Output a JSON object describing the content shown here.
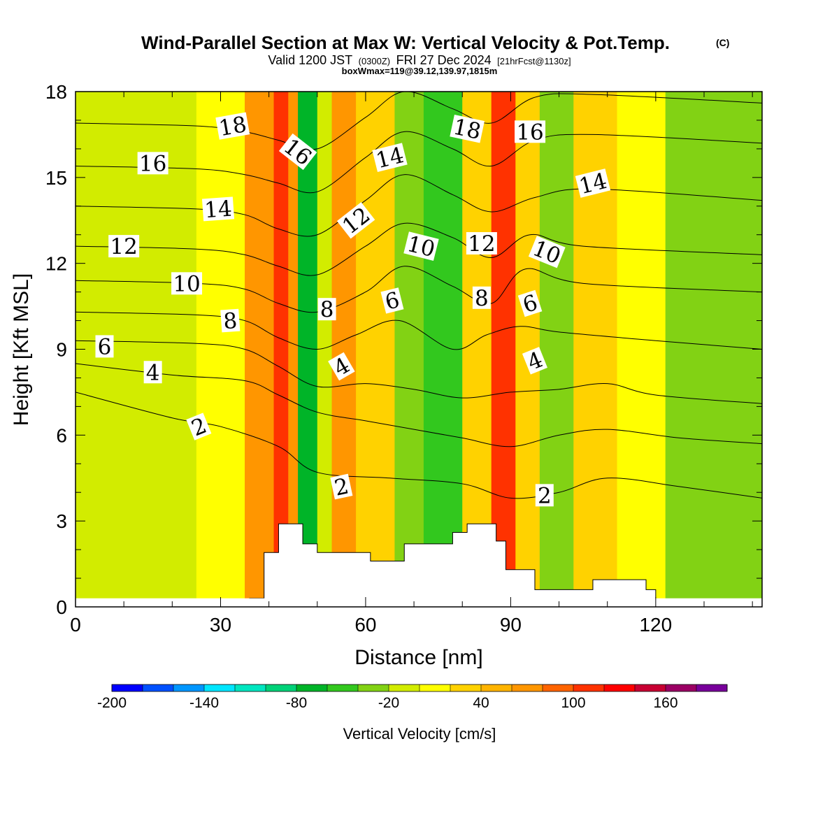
{
  "chart_data": {
    "type": "heatmap",
    "title": "Wind-Parallel Section at Max W: Vertical Velocity & Pot.Temp.",
    "title_mark": "(C)",
    "subtitle_parts": [
      "Valid 1200 JST",
      "(0300Z)",
      "FRI 27 Dec 2024",
      "[21hrFcst@1130z]"
    ],
    "subtitle2": "boxWmax=119@39.12,139.97,1815m",
    "xlabel": "Distance [nm]",
    "ylabel": "Height [Kft MSL]",
    "xlim": [
      0,
      142
    ],
    "ylim": [
      0,
      18
    ],
    "x_ticks": [
      0,
      30,
      60,
      90,
      120
    ],
    "x_tick_labels": [
      "0",
      "30",
      "60",
      "90",
      "120"
    ],
    "y_ticks": [
      0,
      3,
      6,
      9,
      12,
      15,
      18
    ],
    "y_tick_labels": [
      "0",
      "3",
      "6",
      "9",
      "12",
      "15",
      "18"
    ],
    "colorbar": {
      "label": "Vertical Velocity [cm/s]",
      "min": -200,
      "max": 200,
      "tick_values": [
        -200,
        -140,
        -80,
        -20,
        40,
        100,
        160
      ],
      "tick_labels": [
        "-200",
        "-140",
        "-80",
        "-20",
        "40",
        "100",
        "160"
      ],
      "colors": [
        "#0000ff",
        "#0050ff",
        "#0096ff",
        "#00e6ff",
        "#00e6c0",
        "#00d278",
        "#00b428",
        "#32c81e",
        "#82d214",
        "#d2ec00",
        "#ffff00",
        "#ffd200",
        "#ffb400",
        "#ff9600",
        "#ff6400",
        "#ff3200",
        "#ff0000",
        "#c80032",
        "#9b0064",
        "#78009b"
      ]
    },
    "velocity_bands": [
      {
        "x_min": 0,
        "x_max": 25,
        "w": -10
      },
      {
        "x_min": 25,
        "x_max": 35,
        "w": 5
      },
      {
        "x_min": 35,
        "x_max": 41,
        "w": 60
      },
      {
        "x_min": 41,
        "x_max": 44,
        "w": 110
      },
      {
        "x_min": 44,
        "x_max": 46,
        "w": 60
      },
      {
        "x_min": 46,
        "x_max": 50,
        "w": -70
      },
      {
        "x_min": 50,
        "x_max": 53,
        "w": -20
      },
      {
        "x_min": 53,
        "x_max": 58,
        "w": 60
      },
      {
        "x_min": 58,
        "x_max": 66,
        "w": 30
      },
      {
        "x_min": 66,
        "x_max": 72,
        "w": -30
      },
      {
        "x_min": 72,
        "x_max": 80,
        "w": -50
      },
      {
        "x_min": 80,
        "x_max": 86,
        "w": 20
      },
      {
        "x_min": 86,
        "x_max": 91,
        "w": 110
      },
      {
        "x_min": 91,
        "x_max": 96,
        "w": 30
      },
      {
        "x_min": 96,
        "x_max": 103,
        "w": -40
      },
      {
        "x_min": 103,
        "x_max": 112,
        "w": 30
      },
      {
        "x_min": 112,
        "x_max": 122,
        "w": 10
      },
      {
        "x_min": 122,
        "x_max": 142,
        "w": -30
      }
    ],
    "terrain": [
      [
        36,
        0.3
      ],
      [
        39,
        1.9
      ],
      [
        42,
        2.9
      ],
      [
        47,
        2.2
      ],
      [
        50,
        1.9
      ],
      [
        61,
        1.6
      ],
      [
        68,
        2.2
      ],
      [
        78,
        2.6
      ],
      [
        81,
        2.9
      ],
      [
        87,
        2.3
      ],
      [
        89,
        1.3
      ],
      [
        95,
        0.6
      ],
      [
        100,
        0.6
      ],
      [
        107,
        0.95
      ],
      [
        113,
        0.95
      ],
      [
        118,
        0.6
      ],
      [
        120,
        0.3
      ]
    ],
    "theta_contours": [
      {
        "label": "2",
        "points": [
          [
            0,
            7.5
          ],
          [
            20,
            6.6
          ],
          [
            30,
            6.3
          ],
          [
            42,
            5.6
          ],
          [
            50,
            4.7
          ],
          [
            65,
            4.5
          ],
          [
            80,
            4.3
          ],
          [
            90,
            3.8
          ],
          [
            100,
            4.0
          ],
          [
            110,
            4.5
          ],
          [
            125,
            4.2
          ],
          [
            142,
            3.8
          ]
        ]
      },
      {
        "label": "4",
        "points": [
          [
            0,
            8.5
          ],
          [
            20,
            8.1
          ],
          [
            35,
            7.9
          ],
          [
            42,
            7.4
          ],
          [
            50,
            6.8
          ],
          [
            60,
            6.5
          ],
          [
            70,
            6.2
          ],
          [
            80,
            5.9
          ],
          [
            90,
            5.6
          ],
          [
            100,
            6.0
          ],
          [
            110,
            6.2
          ],
          [
            125,
            5.9
          ],
          [
            142,
            5.7
          ]
        ]
      },
      {
        "label": "6",
        "points": [
          [
            0,
            9.3
          ],
          [
            25,
            9.2
          ],
          [
            35,
            9.0
          ],
          [
            42,
            8.4
          ],
          [
            50,
            7.7
          ],
          [
            60,
            7.8
          ],
          [
            70,
            7.6
          ],
          [
            80,
            7.3
          ],
          [
            90,
            7.5
          ],
          [
            100,
            7.6
          ],
          [
            110,
            7.8
          ],
          [
            120,
            7.4
          ],
          [
            142,
            7.1
          ]
        ]
      },
      {
        "label": "8",
        "points": [
          [
            0,
            10.3
          ],
          [
            25,
            10.2
          ],
          [
            35,
            10.0
          ],
          [
            42,
            9.4
          ],
          [
            50,
            9.0
          ],
          [
            58,
            9.5
          ],
          [
            67,
            10.0
          ],
          [
            78,
            9.0
          ],
          [
            85,
            9.5
          ],
          [
            92,
            9.8
          ],
          [
            100,
            9.6
          ],
          [
            120,
            9.3
          ],
          [
            142,
            9.0
          ]
        ]
      },
      {
        "label": "10",
        "points": [
          [
            0,
            11.4
          ],
          [
            25,
            11.3
          ],
          [
            35,
            11.1
          ],
          [
            42,
            10.6
          ],
          [
            50,
            10.3
          ],
          [
            60,
            11.0
          ],
          [
            68,
            11.9
          ],
          [
            78,
            11.2
          ],
          [
            86,
            10.6
          ],
          [
            93,
            11.8
          ],
          [
            105,
            11.3
          ],
          [
            142,
            11.0
          ]
        ]
      },
      {
        "label": "12",
        "points": [
          [
            0,
            12.6
          ],
          [
            25,
            12.5
          ],
          [
            35,
            12.3
          ],
          [
            42,
            11.9
          ],
          [
            50,
            11.6
          ],
          [
            60,
            12.6
          ],
          [
            68,
            13.4
          ],
          [
            78,
            12.9
          ],
          [
            86,
            12.2
          ],
          [
            94,
            13.0
          ],
          [
            105,
            12.6
          ],
          [
            142,
            12.3
          ]
        ]
      },
      {
        "label": "14",
        "points": [
          [
            0,
            14.0
          ],
          [
            25,
            13.9
          ],
          [
            35,
            13.7
          ],
          [
            42,
            13.2
          ],
          [
            50,
            13.0
          ],
          [
            60,
            14.2
          ],
          [
            68,
            15.1
          ],
          [
            78,
            14.4
          ],
          [
            86,
            13.8
          ],
          [
            95,
            14.3
          ],
          [
            107,
            14.6
          ],
          [
            142,
            14.2
          ]
        ]
      },
      {
        "label": "16",
        "points": [
          [
            0,
            15.4
          ],
          [
            25,
            15.3
          ],
          [
            35,
            15.1
          ],
          [
            42,
            14.8
          ],
          [
            50,
            14.5
          ],
          [
            60,
            15.7
          ],
          [
            68,
            16.6
          ],
          [
            78,
            16.0
          ],
          [
            86,
            15.4
          ],
          [
            95,
            16.3
          ],
          [
            107,
            16.5
          ],
          [
            142,
            16.2
          ]
        ]
      },
      {
        "label": "18",
        "points": [
          [
            0,
            16.9
          ],
          [
            25,
            16.8
          ],
          [
            35,
            16.6
          ],
          [
            42,
            16.3
          ],
          [
            50,
            16.0
          ],
          [
            60,
            17.1
          ],
          [
            68,
            18.0
          ],
          [
            78,
            17.4
          ],
          [
            86,
            16.9
          ],
          [
            95,
            17.8
          ],
          [
            107,
            17.9
          ],
          [
            142,
            17.6
          ]
        ]
      }
    ],
    "contour_labels": [
      {
        "text": "18",
        "x": 32.5,
        "y": 16.8,
        "angle": -10
      },
      {
        "text": "16",
        "x": 16,
        "y": 15.5,
        "angle": 0
      },
      {
        "text": "14",
        "x": 29.5,
        "y": 13.9,
        "angle": -4
      },
      {
        "text": "12",
        "x": 10,
        "y": 12.6,
        "angle": 0
      },
      {
        "text": "10",
        "x": 23,
        "y": 11.3,
        "angle": 0
      },
      {
        "text": "8",
        "x": 32,
        "y": 10.0,
        "angle": -4
      },
      {
        "text": "6",
        "x": 6,
        "y": 9.1,
        "angle": 0
      },
      {
        "text": "4",
        "x": 16,
        "y": 8.2,
        "angle": 0
      },
      {
        "text": "2",
        "x": 25.5,
        "y": 6.3,
        "angle": -22
      },
      {
        "text": "16",
        "x": 46,
        "y": 15.9,
        "angle": 38
      },
      {
        "text": "14",
        "x": 65,
        "y": 15.7,
        "angle": -14
      },
      {
        "text": "12",
        "x": 58,
        "y": 13.5,
        "angle": -38
      },
      {
        "text": "10",
        "x": 71.5,
        "y": 12.6,
        "angle": 14
      },
      {
        "text": "8",
        "x": 52,
        "y": 10.4,
        "angle": 0
      },
      {
        "text": "6",
        "x": 65.5,
        "y": 10.7,
        "angle": -14
      },
      {
        "text": "4",
        "x": 55,
        "y": 8.4,
        "angle": -30
      },
      {
        "text": "2",
        "x": 55,
        "y": 4.2,
        "angle": -12
      },
      {
        "text": "18",
        "x": 81,
        "y": 16.7,
        "angle": 12
      },
      {
        "text": "16",
        "x": 94,
        "y": 16.6,
        "angle": 0
      },
      {
        "text": "12",
        "x": 84,
        "y": 12.7,
        "angle": 0
      },
      {
        "text": "10",
        "x": 97.5,
        "y": 12.4,
        "angle": 22
      },
      {
        "text": "8",
        "x": 84,
        "y": 10.8,
        "angle": 0
      },
      {
        "text": "6",
        "x": 94,
        "y": 10.6,
        "angle": -18
      },
      {
        "text": "4",
        "x": 95,
        "y": 8.6,
        "angle": -22
      },
      {
        "text": "14",
        "x": 107,
        "y": 14.8,
        "angle": -14
      },
      {
        "text": "2",
        "x": 97,
        "y": 3.9,
        "angle": 0
      }
    ]
  }
}
